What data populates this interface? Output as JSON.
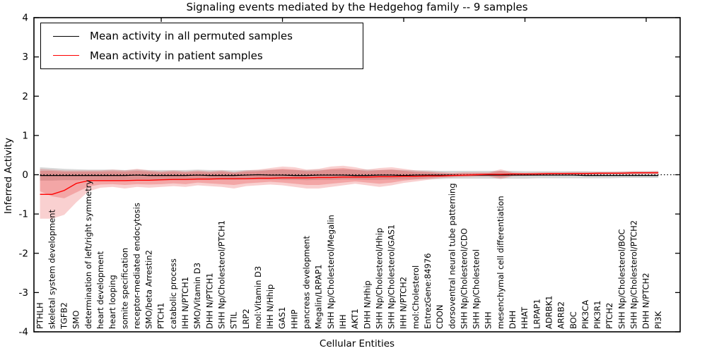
{
  "title": "Signaling events mediated by the Hedgehog family -- 9 samples",
  "axes": {
    "x_label": "Cellular Entities",
    "y_label": "Inferred Activity",
    "y_ticks": [
      "4",
      "3",
      "2",
      "1",
      "0",
      "-1",
      "-2",
      "-3",
      "-4"
    ]
  },
  "legend": {
    "entries": [
      {
        "label": "Mean activity in all permuted samples",
        "color": "#000000"
      },
      {
        "label": "Mean activity in patient samples",
        "color": "#ff0000"
      }
    ]
  },
  "chart_data": {
    "type": "line",
    "title": "Signaling events mediated by the Hedgehog family -- 9 samples",
    "xlabel": "Cellular Entities",
    "ylabel": "Inferred Activity",
    "ylim": [
      -4,
      4
    ],
    "grid": false,
    "legend_position": "upper left",
    "zero_reference_line": {
      "style": "dotted",
      "color": "#000000",
      "value": 0
    },
    "top_tick_indices": [
      10,
      20,
      30,
      40,
      50
    ],
    "categories": [
      "PTHLH",
      "skeletal system development",
      "TGFB2",
      "SMO",
      "determination of left/right symmetry",
      "heart development",
      "heart looping",
      "somite specification",
      "receptor-mediated endocytosis",
      "SMO/beta Arrestin2",
      "PTCH1",
      "catabolic process",
      "IHH N/PTCH1",
      "SMO/Vitamin D3",
      "DHH N/PTCH1",
      "SHH Np/Cholesterol/PTCH1",
      "STIL",
      "LRP2",
      "mol:Vitamin D3",
      "IHH N/Hhip",
      "GAS1",
      "HHIP",
      "pancreas development",
      "Megalin/LRPAP1",
      "SHH Np/Cholesterol/Megalin",
      "IHH",
      "AKT1",
      "DHH N/Hhip",
      "SHH Np/Cholesterol/Hhip",
      "SHH Np/Cholesterol/GAS1",
      "IHH N/PTCH2",
      "mol:Cholesterol",
      "EntrezGene:84976",
      "CDON",
      "dorsoventral neural tube patterning",
      "SHH Np/Cholesterol/CDO",
      "SHH Np/Cholesterol",
      "SHH",
      "mesenchymal cell differentiation",
      "DHH",
      "HHAT",
      "LRPAP1",
      "ADRBK1",
      "ARRB2",
      "BOC",
      "PIK3CA",
      "PIK3R1",
      "PTCH2",
      "SHH Np/Cholesterol/BOC",
      "SHH Np/Cholesterol/PTCH2",
      "DHH N/PTCH2",
      "PI3K"
    ],
    "series": [
      {
        "name": "Mean activity in all permuted samples",
        "color": "#000000",
        "width": 1.2,
        "values": [
          -0.02,
          -0.02,
          -0.02,
          -0.02,
          -0.02,
          -0.02,
          -0.02,
          -0.02,
          -0.01,
          -0.02,
          -0.02,
          -0.02,
          -0.02,
          -0.01,
          -0.02,
          -0.02,
          -0.02,
          -0.01,
          0.0,
          -0.01,
          -0.01,
          -0.02,
          -0.02,
          -0.01,
          -0.01,
          -0.01,
          -0.02,
          -0.02,
          -0.01,
          -0.01,
          -0.02,
          -0.01,
          -0.01,
          -0.01,
          -0.01,
          -0.01,
          -0.01,
          -0.01,
          -0.01,
          -0.01,
          -0.01,
          -0.01,
          -0.01,
          -0.01,
          -0.01,
          -0.02,
          -0.02,
          -0.02,
          -0.02,
          -0.02,
          -0.02,
          -0.02
        ]
      },
      {
        "name": "Mean activity in patient samples",
        "color": "#ff0000",
        "width": 1.4,
        "values": [
          -0.5,
          -0.5,
          -0.4,
          -0.22,
          -0.15,
          -0.15,
          -0.15,
          -0.15,
          -0.14,
          -0.14,
          -0.13,
          -0.12,
          -0.12,
          -0.11,
          -0.11,
          -0.1,
          -0.1,
          -0.1,
          -0.09,
          -0.09,
          -0.08,
          -0.08,
          -0.08,
          -0.07,
          -0.07,
          -0.06,
          -0.06,
          -0.06,
          -0.05,
          -0.05,
          -0.04,
          -0.04,
          -0.03,
          -0.03,
          -0.02,
          -0.01,
          0.0,
          0.01,
          0.01,
          0.02,
          0.02,
          0.02,
          0.03,
          0.03,
          0.03,
          0.03,
          0.04,
          0.04,
          0.04,
          0.05,
          0.05,
          0.05
        ]
      }
    ],
    "bands": [
      {
        "name": "permuted-samples-range",
        "color": "#999999",
        "opacity": 0.38,
        "upper": [
          0.19,
          0.17,
          0.15,
          0.14,
          0.13,
          0.13,
          0.13,
          0.12,
          0.13,
          0.12,
          0.12,
          0.12,
          0.12,
          0.13,
          0.12,
          0.12,
          0.11,
          0.12,
          0.12,
          0.13,
          0.13,
          0.12,
          0.12,
          0.13,
          0.13,
          0.14,
          0.13,
          0.13,
          0.12,
          0.13,
          0.12,
          0.11,
          0.11,
          0.1,
          0.1,
          0.1,
          0.1,
          0.1,
          0.1,
          0.1,
          0.09,
          0.09,
          0.09,
          0.09,
          0.09,
          0.09,
          0.08,
          0.08,
          0.08,
          0.09,
          0.09,
          0.09
        ],
        "lower": [
          -0.15,
          -0.15,
          -0.14,
          -0.14,
          -0.13,
          -0.13,
          -0.13,
          -0.13,
          -0.12,
          -0.12,
          -0.13,
          -0.12,
          -0.13,
          -0.12,
          -0.12,
          -0.13,
          -0.13,
          -0.12,
          -0.12,
          -0.12,
          -0.13,
          -0.13,
          -0.14,
          -0.13,
          -0.13,
          -0.12,
          -0.12,
          -0.13,
          -0.13,
          -0.12,
          -0.12,
          -0.11,
          -0.11,
          -0.11,
          -0.1,
          -0.1,
          -0.1,
          -0.1,
          -0.1,
          -0.1,
          -0.1,
          -0.09,
          -0.09,
          -0.09,
          -0.09,
          -0.09,
          -0.09,
          -0.09,
          -0.08,
          -0.08,
          -0.08,
          -0.08
        ]
      },
      {
        "name": "patient-samples-range-outer",
        "color": "#e53939",
        "opacity": 0.24,
        "upper": [
          0.15,
          0.13,
          0.11,
          0.11,
          0.11,
          0.11,
          0.13,
          0.11,
          0.15,
          0.11,
          0.09,
          0.11,
          0.09,
          0.11,
          0.09,
          0.11,
          0.07,
          0.11,
          0.13,
          0.17,
          0.21,
          0.19,
          0.13,
          0.15,
          0.21,
          0.23,
          0.19,
          0.13,
          0.17,
          0.19,
          0.15,
          0.11,
          0.09,
          0.07,
          0.05,
          0.06,
          0.06,
          0.06,
          0.14,
          0.06,
          0.05,
          0.06,
          0.06,
          0.06,
          0.07,
          0.07,
          0.07,
          0.07,
          0.08,
          0.09,
          0.09,
          0.1
        ],
        "lower": [
          -1.12,
          -1.12,
          -1.02,
          -0.7,
          -0.42,
          -0.33,
          -0.31,
          -0.35,
          -0.31,
          -0.33,
          -0.31,
          -0.29,
          -0.31,
          -0.27,
          -0.29,
          -0.31,
          -0.35,
          -0.29,
          -0.27,
          -0.25,
          -0.27,
          -0.31,
          -0.35,
          -0.35,
          -0.31,
          -0.27,
          -0.23,
          -0.27,
          -0.31,
          -0.27,
          -0.21,
          -0.17,
          -0.13,
          -0.09,
          -0.07,
          -0.06,
          -0.05,
          -0.05,
          -0.11,
          -0.04,
          -0.03,
          -0.02,
          -0.01,
          -0.01,
          0.0,
          0.0,
          0.0,
          0.01,
          0.01,
          0.01,
          0.02,
          0.02
        ]
      },
      {
        "name": "patient-samples-range-inner",
        "color": "#e53939",
        "opacity": 0.27,
        "upper": [
          0.1,
          0.1,
          0.08,
          0.08,
          0.08,
          0.08,
          0.09,
          0.08,
          0.1,
          0.08,
          0.06,
          0.08,
          0.06,
          0.08,
          0.06,
          0.08,
          0.05,
          0.08,
          0.09,
          0.12,
          0.15,
          0.13,
          0.09,
          0.1,
          0.15,
          0.17,
          0.13,
          0.09,
          0.12,
          0.13,
          0.1,
          0.07,
          0.06,
          0.04,
          0.03,
          0.04,
          0.04,
          0.04,
          0.1,
          0.04,
          0.03,
          0.04,
          0.04,
          0.04,
          0.05,
          0.05,
          0.05,
          0.05,
          0.05,
          0.06,
          0.06,
          0.07
        ],
        "lower": [
          -0.42,
          -0.55,
          -0.6,
          -0.45,
          -0.3,
          -0.25,
          -0.24,
          -0.26,
          -0.24,
          -0.25,
          -0.24,
          -0.22,
          -0.24,
          -0.2,
          -0.22,
          -0.24,
          -0.26,
          -0.22,
          -0.2,
          -0.18,
          -0.2,
          -0.23,
          -0.26,
          -0.26,
          -0.23,
          -0.2,
          -0.17,
          -0.2,
          -0.23,
          -0.2,
          -0.15,
          -0.12,
          -0.09,
          -0.06,
          -0.05,
          -0.04,
          -0.03,
          -0.03,
          -0.07,
          -0.02,
          -0.01,
          0.0,
          0.0,
          0.01,
          0.01,
          0.01,
          0.01,
          0.02,
          0.02,
          0.02,
          0.03,
          0.03
        ]
      }
    ]
  }
}
